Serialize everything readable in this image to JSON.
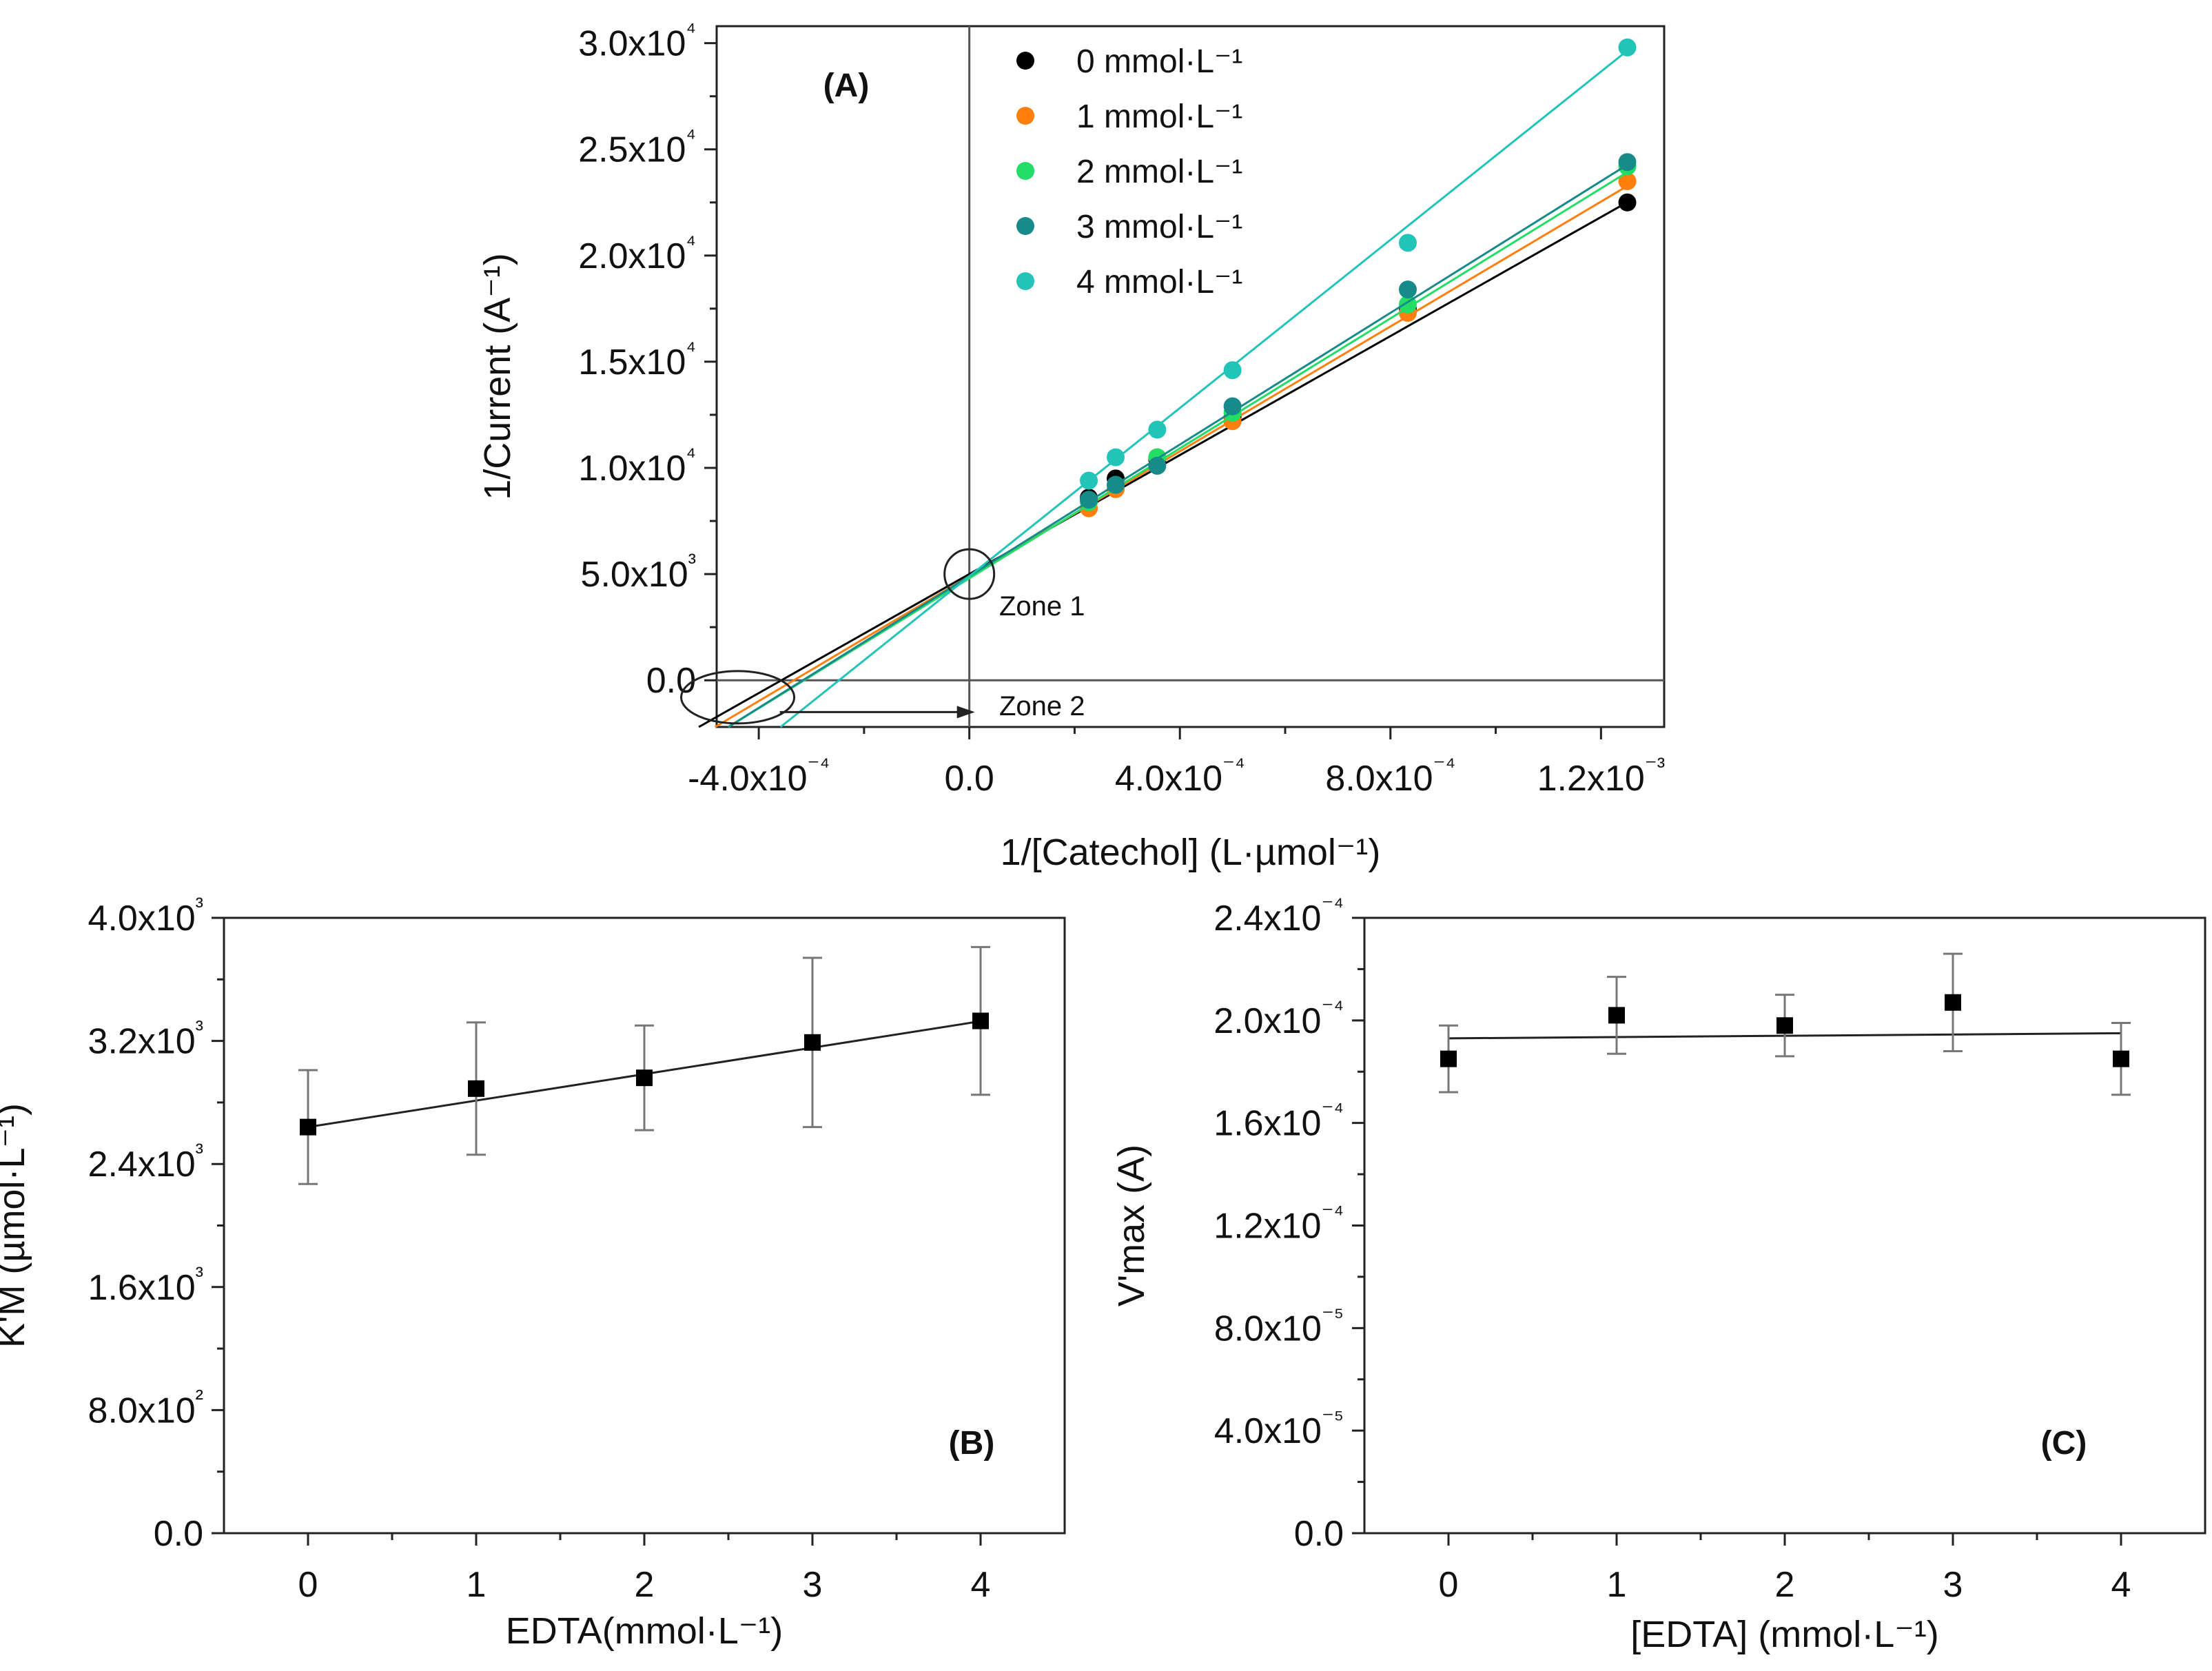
{
  "chart_data": [
    {
      "id": "A",
      "type": "scatter",
      "panel_label": "(A)",
      "xlabel": "1/[Catechol] (L·µmol⁻¹)",
      "ylabel": "1/Current (A⁻¹)",
      "xlim": [
        -0.00048,
        0.00132
      ],
      "ylim": [
        -2200,
        30800
      ],
      "x_ticks": [
        -0.0004,
        0,
        0.0004,
        0.0008,
        0.0012
      ],
      "x_tick_labels": [
        "-4.0x10⁻⁴",
        "0.0",
        "4.0x10⁻⁴",
        "8.0x10⁻⁴",
        "1.2x10⁻³"
      ],
      "y_ticks": [
        0,
        5000,
        10000,
        15000,
        20000,
        25000,
        30000
      ],
      "y_tick_labels": [
        "0.0",
        "5.0x10³",
        "1.0x10⁴",
        "1.5x10⁴",
        "2.0x10⁴",
        "2.5x10⁴",
        "3.0x10⁴"
      ],
      "legend_position": "top",
      "x": [
        0.000227,
        0.000278,
        0.000357,
        0.0005,
        0.000833,
        0.00125
      ],
      "series": [
        {
          "name": "0 mmol·L⁻¹",
          "color": "#000000",
          "values": [
            8600,
            9500,
            10400,
            12400,
            17500,
            22500
          ],
          "fit": {
            "slope": 14010000,
            "intercept": 5000
          }
        },
        {
          "name": "1 mmol·L⁻¹",
          "color": "#ff7f0e",
          "values": [
            8100,
            9000,
            10500,
            12200,
            17300,
            23500
          ],
          "fit": {
            "slope": 14700000,
            "intercept": 4900
          }
        },
        {
          "name": "2 mmol·L⁻¹",
          "color": "#22dd66",
          "values": [
            8400,
            9200,
            10500,
            12600,
            17700,
            24200
          ],
          "fit": {
            "slope": 15300000,
            "intercept": 4800
          }
        },
        {
          "name": "3 mmol·L⁻¹",
          "color": "#178a8a",
          "values": [
            8500,
            9200,
            10100,
            12900,
            18400,
            24400
          ],
          "fit": {
            "slope": 15500000,
            "intercept": 4900
          }
        },
        {
          "name": "4 mmol·L⁻¹",
          "color": "#22c4b8",
          "values": [
            9400,
            10500,
            11800,
            14600,
            20600,
            29800
          ],
          "fit": {
            "slope": 19800000,
            "intercept": 4900
          }
        }
      ],
      "annotations": [
        {
          "text": "Zone 1",
          "x": 0,
          "y": 5000
        },
        {
          "text": "Zone 2",
          "x": -0.00044,
          "y": -2200
        }
      ]
    },
    {
      "id": "B",
      "type": "scatter",
      "panel_label": "(B)",
      "xlabel": "EDTA(mmol·L⁻¹)",
      "ylabel": "K'M (µmol·L⁻¹)",
      "xlim": [
        -0.5,
        4.5
      ],
      "ylim": [
        0,
        4000
      ],
      "x_ticks": [
        0,
        1,
        2,
        3,
        4
      ],
      "x_tick_labels": [
        "0",
        "1",
        "2",
        "3",
        "4"
      ],
      "y_ticks": [
        0,
        800,
        1600,
        2400,
        3200,
        4000
      ],
      "y_tick_labels": [
        "0.0",
        "8.0x10²",
        "1.6x10³",
        "2.4x10³",
        "3.2x10³",
        "4.0x10³"
      ],
      "x": [
        0,
        1,
        2,
        3,
        4
      ],
      "values": [
        2640,
        2890,
        2960,
        3190,
        3330
      ],
      "errors": [
        370,
        430,
        340,
        550,
        480
      ],
      "fit": {
        "slope": 172,
        "intercept": 2640
      }
    },
    {
      "id": "C",
      "type": "scatter",
      "panel_label": "(C)",
      "xlabel": "[EDTA] (mmol·L⁻¹)",
      "ylabel": "V'max (A)",
      "xlim": [
        -0.5,
        4.5
      ],
      "ylim": [
        0,
        0.00024
      ],
      "x_ticks": [
        0,
        1,
        2,
        3,
        4
      ],
      "x_tick_labels": [
        "0",
        "1",
        "2",
        "3",
        "4"
      ],
      "y_ticks": [
        0,
        4e-05,
        8e-05,
        0.00012,
        0.00016,
        0.0002,
        0.00024
      ],
      "y_tick_labels": [
        "0.0",
        "4.0x10⁻⁵",
        "8.0x10⁻⁵",
        "1.2x10⁻⁴",
        "1.6x10⁻⁴",
        "2.0x10⁻⁴",
        "2.4x10⁻⁴"
      ],
      "x": [
        0,
        1,
        2,
        3,
        4
      ],
      "values": [
        0.000185,
        0.000202,
        0.000198,
        0.000207,
        0.000185
      ],
      "errors": [
        1.3e-05,
        1.5e-05,
        1.2e-05,
        1.9e-05,
        1.4e-05
      ],
      "fit": {
        "slope": 5e-07,
        "intercept": 0.000193
      }
    }
  ]
}
